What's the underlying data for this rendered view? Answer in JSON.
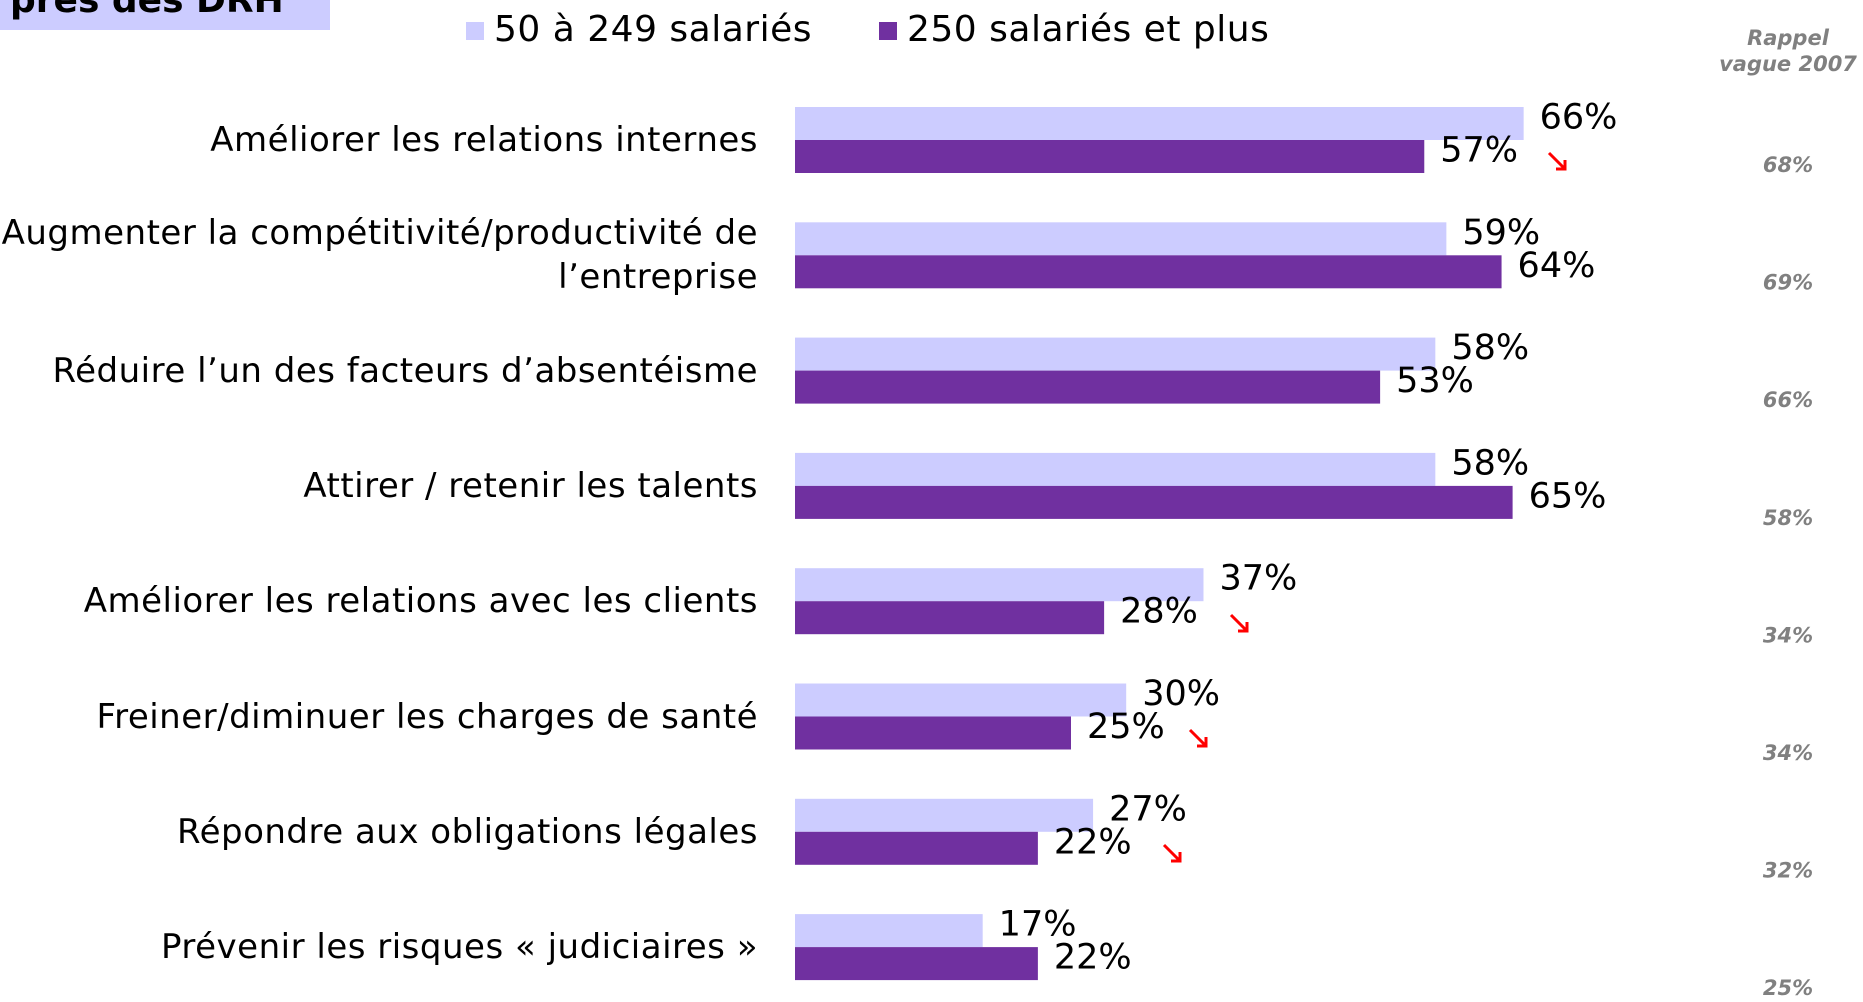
{
  "chart_data": {
    "type": "bar",
    "title": "près des DRH",
    "categories": [
      "Améliorer les relations internes",
      "Augmenter la compétitivité/productivité de l’entreprise",
      "Réduire l’un des facteurs d’absentéisme",
      "Attirer / retenir les talents",
      "Améliorer les relations avec les clients",
      "Freiner/diminuer les charges de santé",
      "Répondre aux obligations légales",
      "Prévenir les risques « judiciaires »"
    ],
    "series": [
      {
        "name": "50 à 249 salariés",
        "color": "#ccccff",
        "values": [
          66,
          59,
          58,
          58,
          37,
          30,
          27,
          17
        ],
        "value_labels": [
          "66%",
          "59%",
          "58%",
          "58%",
          "37%",
          "30%",
          "27%",
          "17%"
        ]
      },
      {
        "name": "250 salariés et plus",
        "color": "#7030a0",
        "values": [
          57,
          64,
          53,
          65,
          28,
          25,
          22,
          22
        ],
        "value_labels": [
          "57%",
          "64%",
          "53%",
          "65%",
          "28%",
          "25%",
          "22%",
          "22%"
        ]
      }
    ],
    "reference": {
      "header": [
        "Rappel",
        "vague 2007"
      ],
      "values": [
        68,
        69,
        66,
        58,
        34,
        34,
        32,
        25
      ],
      "value_labels": [
        "68%",
        "69%",
        "66%",
        "58%",
        "34%",
        "34%",
        "32%",
        "25%"
      ]
    }
  }
}
